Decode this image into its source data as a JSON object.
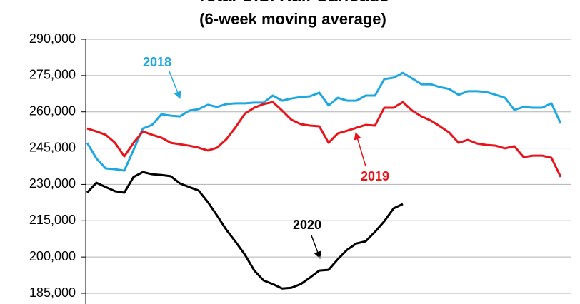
{
  "chart_data": {
    "type": "line",
    "title": "Total U.S. Rail Carloads",
    "subtitle": "(6-week moving average)",
    "ylim": [
      185000,
      290000
    ],
    "yticks": [
      {
        "value": 185000,
        "label": "185,000"
      },
      {
        "value": 200000,
        "label": "200,000"
      },
      {
        "value": 215000,
        "label": "215,000"
      },
      {
        "value": 230000,
        "label": "230,000"
      },
      {
        "value": 245000,
        "label": "245,000"
      },
      {
        "value": 260000,
        "label": "260,000"
      },
      {
        "value": 275000,
        "label": "275,000"
      },
      {
        "value": 290000,
        "label": "290,000"
      }
    ],
    "grid": true,
    "series": [
      {
        "name": "2018",
        "color": "#1fa8e0",
        "values": [
          247200,
          240700,
          236600,
          236300,
          235700,
          244300,
          253100,
          254600,
          259000,
          258400,
          258100,
          260500,
          261100,
          262900,
          262000,
          263200,
          263500,
          263500,
          263800,
          263800,
          266700,
          264600,
          265500,
          266100,
          266400,
          267900,
          262600,
          265800,
          264600,
          264600,
          266700,
          266700,
          273500,
          274100,
          276100,
          273800,
          271400,
          271400,
          270200,
          269400,
          267000,
          268500,
          268500,
          268200,
          267000,
          265800,
          260800,
          262000,
          261700,
          261700,
          263500,
          255200
        ]
      },
      {
        "name": "2019",
        "color": "#e8141b",
        "values": [
          253100,
          251900,
          250500,
          247200,
          241600,
          247200,
          251900,
          250500,
          249300,
          247200,
          246600,
          246000,
          245200,
          244000,
          245200,
          248700,
          253700,
          259300,
          261700,
          263200,
          264000,
          260500,
          256700,
          254900,
          254300,
          254000,
          247200,
          251100,
          252200,
          253400,
          254600,
          254300,
          261700,
          261700,
          264000,
          260500,
          258100,
          256400,
          254000,
          251400,
          247200,
          248400,
          246900,
          246300,
          246000,
          244900,
          245800,
          241300,
          241900,
          241900,
          241000,
          233100
        ]
      },
      {
        "name": "2020",
        "color": "#000000",
        "values": [
          226600,
          230700,
          228900,
          227200,
          226600,
          233100,
          235100,
          234200,
          233900,
          233400,
          230400,
          228900,
          227500,
          222700,
          217100,
          211200,
          206200,
          200900,
          194400,
          190300,
          188800,
          187000,
          187300,
          188800,
          191500,
          194400,
          194700,
          199100,
          203000,
          205600,
          206500,
          210400,
          214800,
          220100,
          221900
        ]
      }
    ]
  }
}
